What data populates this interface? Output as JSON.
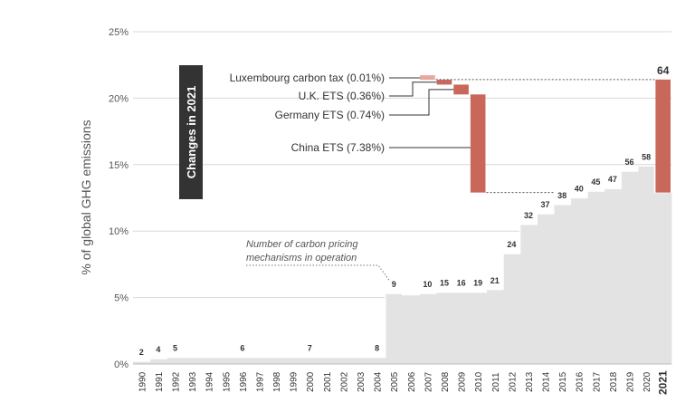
{
  "chart_data": {
    "type": "area",
    "ylabel": "% of global GHG emissions",
    "ylim": [
      0,
      25
    ],
    "y_ticks": [
      "0%",
      "5%",
      "10%",
      "15%",
      "20%",
      "25%"
    ],
    "y_tick_values": [
      0,
      5,
      10,
      15,
      20,
      25
    ],
    "grid": true,
    "categories": [
      "1990",
      "1991",
      "1992",
      "1993",
      "1994",
      "1995",
      "1996",
      "1997",
      "1998",
      "1999",
      "2000",
      "2001",
      "2002",
      "2003",
      "2004",
      "2005",
      "2006",
      "2007",
      "2008",
      "2009",
      "2010",
      "2011",
      "2012",
      "2013",
      "2014",
      "2015",
      "2016",
      "2017",
      "2018",
      "2019",
      "2020",
      "2021"
    ],
    "coverage_pct": [
      0.2,
      0.4,
      0.5,
      0.5,
      0.5,
      0.5,
      0.5,
      0.5,
      0.5,
      0.5,
      0.5,
      0.5,
      0.5,
      0.5,
      0.5,
      5.3,
      5.2,
      5.3,
      5.4,
      5.4,
      5.4,
      5.6,
      8.3,
      10.5,
      11.3,
      12.0,
      12.5,
      13.0,
      13.2,
      14.5,
      14.9,
      12.9
    ],
    "count_labels": [
      {
        "category": "1990",
        "count": "2"
      },
      {
        "category": "1991",
        "count": "4"
      },
      {
        "category": "1992",
        "count": "5"
      },
      {
        "category": "1996",
        "count": "6"
      },
      {
        "category": "2000",
        "count": "7"
      },
      {
        "category": "2004",
        "count": "8"
      },
      {
        "category": "2005",
        "count": "9"
      },
      {
        "category": "2007",
        "count": "10"
      },
      {
        "category": "2008",
        "count": "15"
      },
      {
        "category": "2009",
        "count": "16"
      },
      {
        "category": "2010",
        "count": "19"
      },
      {
        "category": "2011",
        "count": "21"
      },
      {
        "category": "2012",
        "count": "24"
      },
      {
        "category": "2013",
        "count": "32"
      },
      {
        "category": "2014",
        "count": "37"
      },
      {
        "category": "2015",
        "count": "38"
      },
      {
        "category": "2016",
        "count": "40"
      },
      {
        "category": "2017",
        "count": "45"
      },
      {
        "category": "2018",
        "count": "47"
      },
      {
        "category": "2019",
        "count": "56"
      },
      {
        "category": "2020",
        "count": "58"
      },
      {
        "category": "2021",
        "count": "64"
      }
    ],
    "waterfall": {
      "banner": "Changes in 2021",
      "start": 12.9,
      "total": 21.4,
      "steps": [
        {
          "label": "China ETS (7.38%)",
          "value": 7.38,
          "category": "2010"
        },
        {
          "label": "Germany ETS (0.74%)",
          "value": 0.74,
          "category": "2009"
        },
        {
          "label": "U.K. ETS (0.36%)",
          "value": 0.36,
          "category": "2008"
        },
        {
          "label": "Luxembourg carbon tax (0.01%)",
          "value": 0.01,
          "category": "2007"
        }
      ]
    },
    "annotation": {
      "lines": [
        "Number of carbon pricing",
        "mechanisms in operation"
      ],
      "target_category": "2005"
    },
    "colors": {
      "area": "#e3e3e3",
      "area_edge": "#ffffff",
      "waterfall": "#c8675a",
      "waterfall_light": "#e8a79c",
      "banner_bg": "#333333",
      "banner_text": "#ffffff",
      "grid": "#d9d9d9",
      "axis_text": "#555555",
      "label_text": "#333333"
    }
  }
}
